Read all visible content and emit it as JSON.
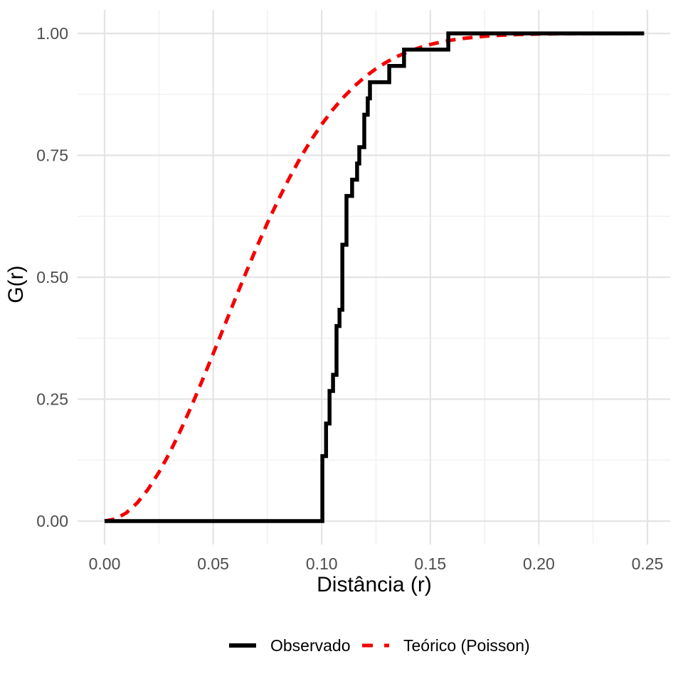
{
  "chart_data": {
    "type": "line",
    "title": "",
    "xlabel": "Distância (r)",
    "ylabel": "G(r)",
    "xlim": [
      0,
      0.25
    ],
    "ylim": [
      0,
      1
    ],
    "grid": "major+minor",
    "legend_position": "bottom",
    "x_ticks": [
      {
        "v": 0.0,
        "label": "0.00"
      },
      {
        "v": 0.05,
        "label": "0.05"
      },
      {
        "v": 0.1,
        "label": "0.10"
      },
      {
        "v": 0.15,
        "label": "0.15"
      },
      {
        "v": 0.2,
        "label": "0.20"
      },
      {
        "v": 0.25,
        "label": "0.25"
      }
    ],
    "y_ticks": [
      {
        "v": 0.0,
        "label": "0.00"
      },
      {
        "v": 0.25,
        "label": "0.25"
      },
      {
        "v": 0.5,
        "label": "0.50"
      },
      {
        "v": 0.75,
        "label": "0.75"
      },
      {
        "v": 1.0,
        "label": "1.00"
      }
    ],
    "x_minor": [
      0.025,
      0.075,
      0.125,
      0.175,
      0.225
    ],
    "y_minor": [
      0.125,
      0.375,
      0.625,
      0.875
    ],
    "series": [
      {
        "name": "Observado",
        "style": "step",
        "linetype": "solid",
        "color": "#000000",
        "start": [
          0.0,
          0.0
        ],
        "end_r": 0.2485,
        "steps": [
          [
            0.1003,
            0.1333
          ],
          [
            0.102,
            0.2
          ],
          [
            0.1036,
            0.2667
          ],
          [
            0.1052,
            0.3
          ],
          [
            0.1068,
            0.4
          ],
          [
            0.1082,
            0.4333
          ],
          [
            0.1095,
            0.5667
          ],
          [
            0.1114,
            0.6667
          ],
          [
            0.114,
            0.7
          ],
          [
            0.1163,
            0.7333
          ],
          [
            0.1173,
            0.7667
          ],
          [
            0.1196,
            0.8333
          ],
          [
            0.1212,
            0.8667
          ],
          [
            0.1222,
            0.9
          ],
          [
            0.1311,
            0.9333
          ],
          [
            0.1379,
            0.9667
          ],
          [
            0.1583,
            1.0
          ]
        ]
      },
      {
        "name": "Teórico (Poisson)",
        "style": "smooth",
        "linetype": "dashed",
        "color": "#F40000",
        "model": "G(r) = 1 - exp(-lambda * pi * r^2)",
        "points": [
          [
            0.0,
            0.0
          ],
          [
            0.005,
            0.0042
          ],
          [
            0.01,
            0.0167
          ],
          [
            0.015,
            0.0371
          ],
          [
            0.02,
            0.065
          ],
          [
            0.025,
            0.0997
          ],
          [
            0.03,
            0.1403
          ],
          [
            0.035,
            0.186
          ],
          [
            0.04,
            0.2357
          ],
          [
            0.045,
            0.2884
          ],
          [
            0.05,
            0.343
          ],
          [
            0.055,
            0.3984
          ],
          [
            0.06,
            0.4538
          ],
          [
            0.065,
            0.5082
          ],
          [
            0.07,
            0.561
          ],
          [
            0.075,
            0.6114
          ],
          [
            0.08,
            0.6588
          ],
          [
            0.085,
            0.7028
          ],
          [
            0.09,
            0.7435
          ],
          [
            0.095,
            0.7805
          ],
          [
            0.1,
            0.8136
          ],
          [
            0.105,
            0.8431
          ],
          [
            0.11,
            0.869
          ],
          [
            0.115,
            0.8916
          ],
          [
            0.12,
            0.9111
          ],
          [
            0.125,
            0.9276
          ],
          [
            0.13,
            0.9415
          ],
          [
            0.135,
            0.9532
          ],
          [
            0.14,
            0.9628
          ],
          [
            0.145,
            0.9707
          ],
          [
            0.15,
            0.9772
          ],
          [
            0.155,
            0.9823
          ],
          [
            0.16,
            0.9864
          ],
          [
            0.165,
            0.9897
          ],
          [
            0.17,
            0.9922
          ],
          [
            0.175,
            0.9942
          ],
          [
            0.18,
            0.9957
          ],
          [
            0.185,
            0.9968
          ],
          [
            0.19,
            0.9977
          ],
          [
            0.195,
            0.9983
          ],
          [
            0.2,
            0.9988
          ],
          [
            0.205,
            0.9991
          ],
          [
            0.21,
            0.9994
          ],
          [
            0.215,
            0.9996
          ],
          [
            0.22,
            0.9997
          ],
          [
            0.225,
            0.9998
          ],
          [
            0.23,
            0.9999
          ],
          [
            0.235,
            0.9999
          ],
          [
            0.24,
            0.9999
          ],
          [
            0.245,
            1.0
          ],
          [
            0.2485,
            1.0
          ]
        ]
      }
    ]
  },
  "theme": {
    "background": "#FFFFFF",
    "grid_major": "#E4E4E4",
    "grid_minor": "#EFEFEF",
    "tick_label_color": "#4D4D4D",
    "axis_title_color": "#000000",
    "legend_text_color": "#000000"
  }
}
